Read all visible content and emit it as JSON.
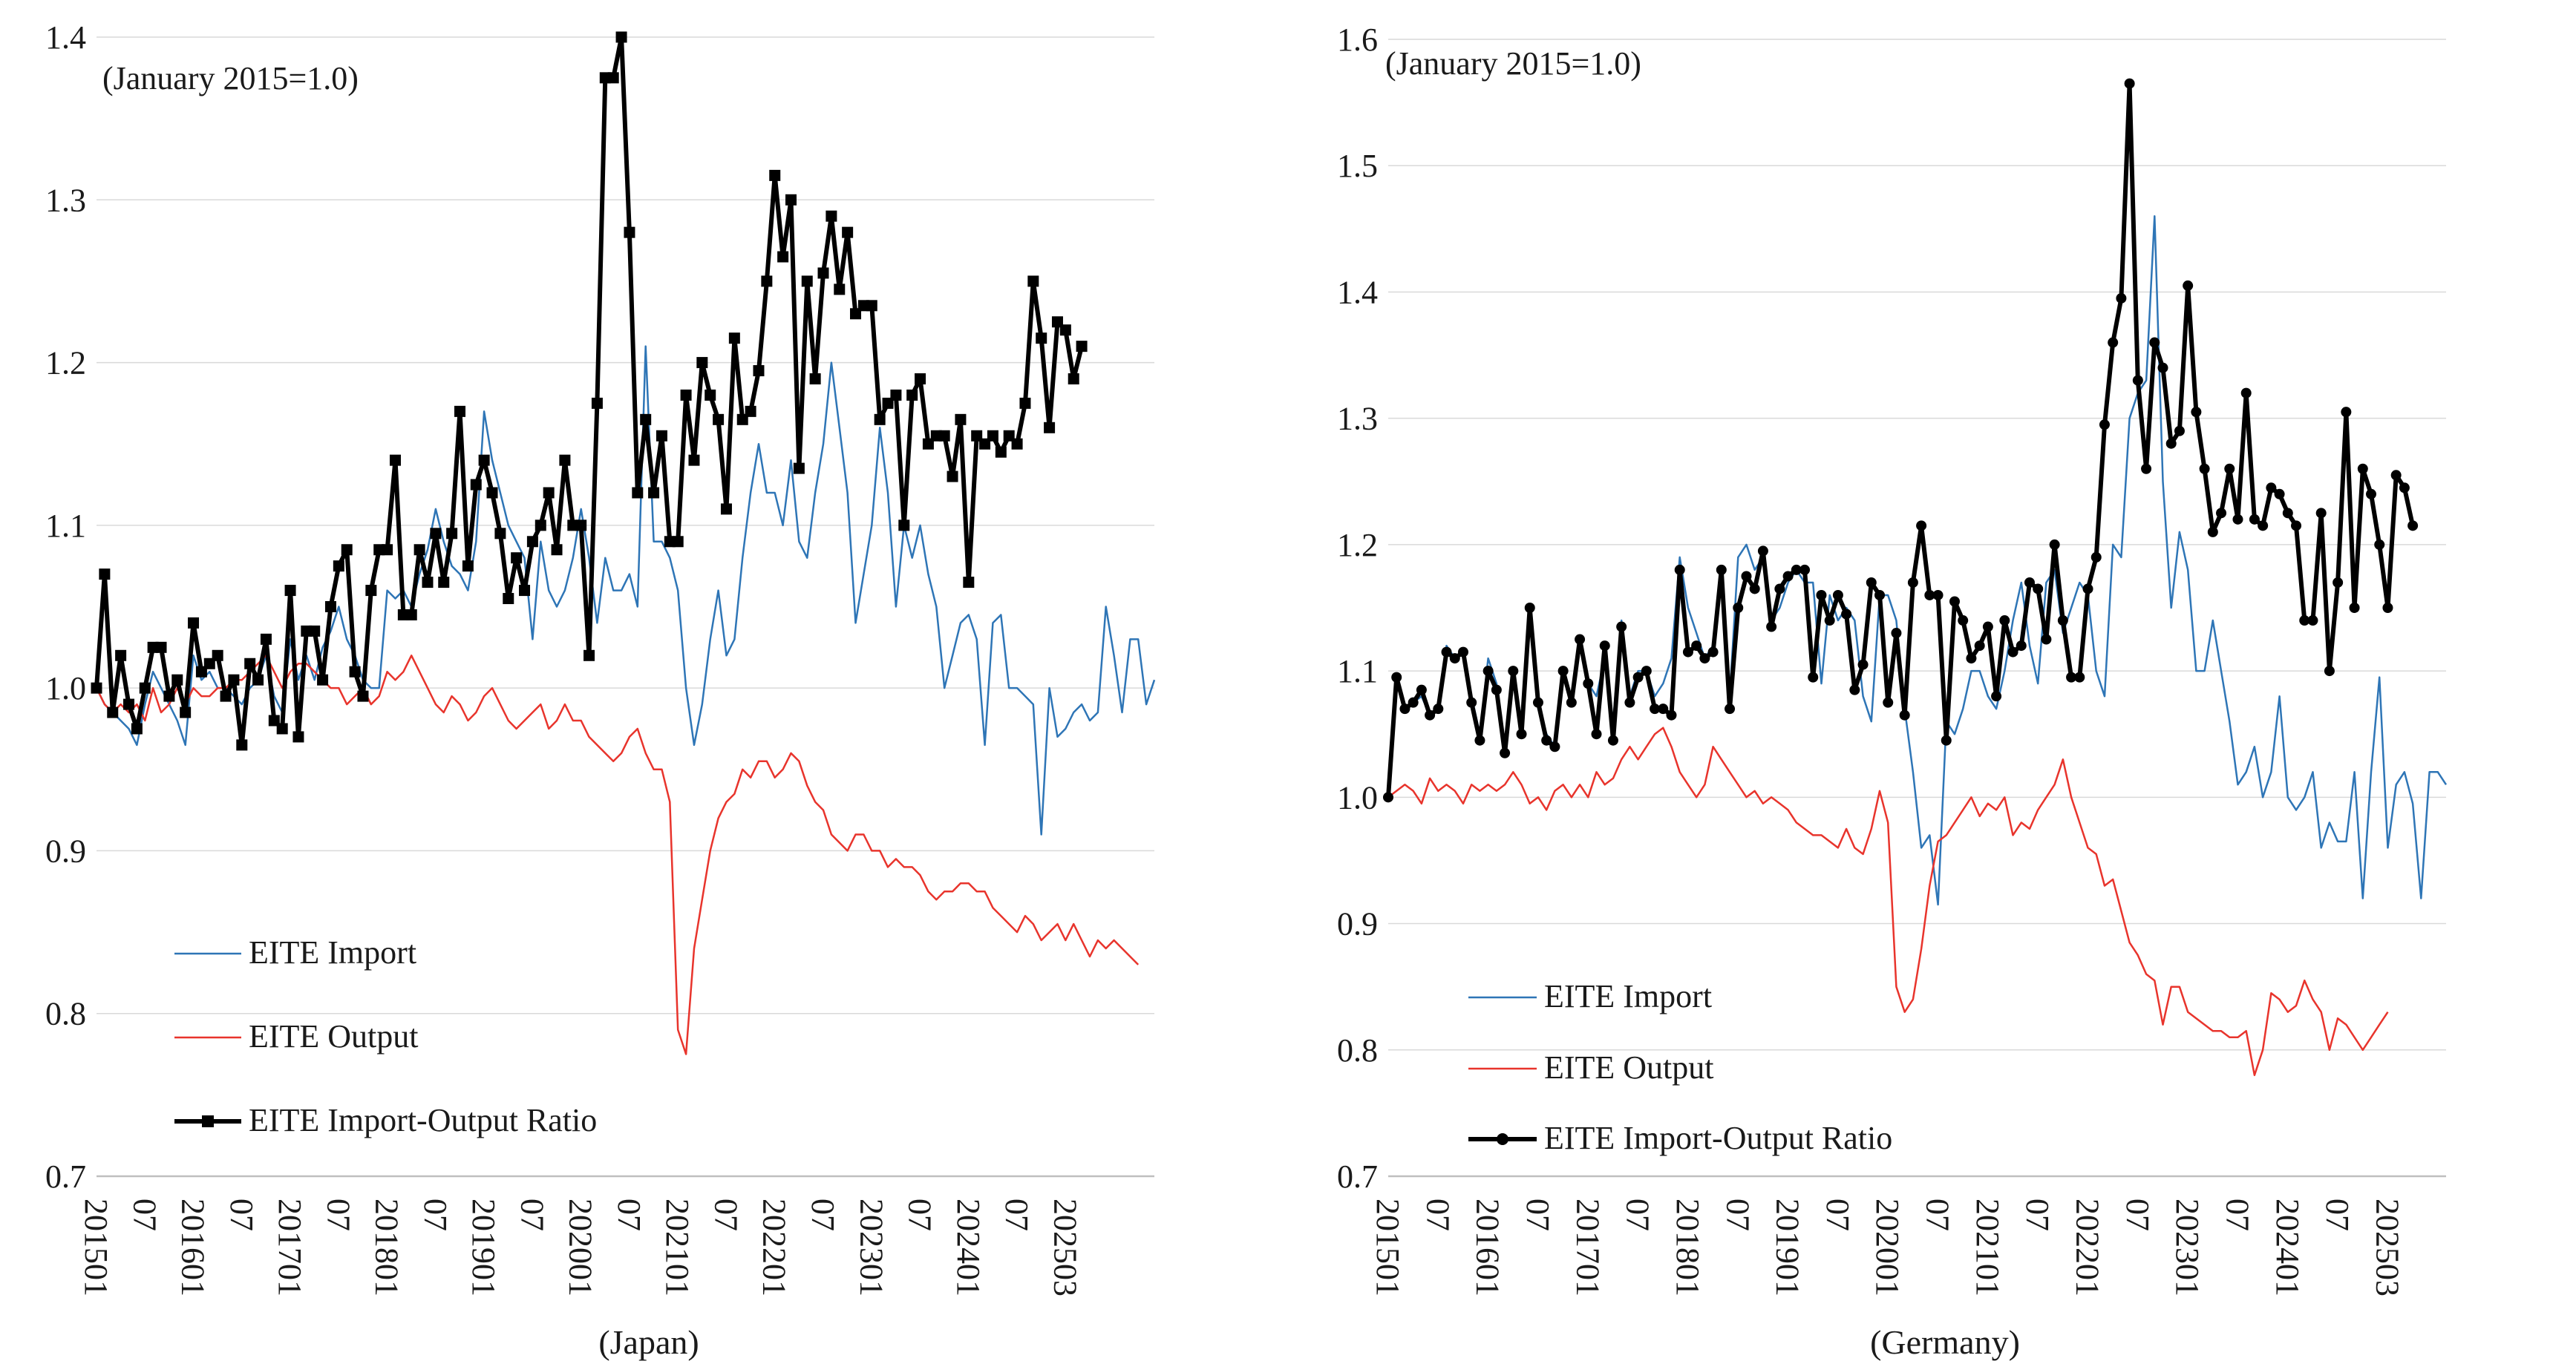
{
  "chart_data": [
    {
      "type": "line",
      "caption": "(Japan)",
      "annotation": "(January 2015=1.0)",
      "ylim": [
        0.7,
        1.4
      ],
      "yticks": [
        "0.7",
        "0.8",
        "0.9",
        "1.0",
        "1.1",
        "1.2",
        "1.3",
        "1.4"
      ],
      "x_start": "201501",
      "x_end": "202503",
      "xtick_labels": [
        "201501",
        "07",
        "201601",
        "07",
        "201701",
        "07",
        "201801",
        "07",
        "201901",
        "07",
        "202001",
        "07",
        "202101",
        "07",
        "202201",
        "07",
        "202301",
        "07",
        "202401",
        "07",
        "202503"
      ],
      "series": [
        {
          "name": "EITE Import",
          "color": "#2e75b6",
          "marker": "none",
          "values": [
            1.0,
            0.99,
            0.985,
            0.98,
            0.975,
            0.965,
            0.99,
            1.01,
            1.0,
            0.99,
            0.98,
            0.965,
            1.02,
            1.005,
            1.01,
            1.0,
            1.0,
            0.995,
            0.99,
            1.0,
            1.005,
            1.02,
            0.995,
            0.985,
            1.03,
            1.005,
            1.02,
            1.005,
            1.025,
            1.035,
            1.05,
            1.03,
            1.02,
            1.005,
            1.0,
            1.0,
            1.06,
            1.055,
            1.06,
            1.05,
            1.07,
            1.085,
            1.11,
            1.09,
            1.075,
            1.07,
            1.06,
            1.09,
            1.17,
            1.14,
            1.12,
            1.1,
            1.09,
            1.08,
            1.03,
            1.09,
            1.06,
            1.05,
            1.06,
            1.08,
            1.11,
            1.08,
            1.04,
            1.08,
            1.06,
            1.06,
            1.07,
            1.05,
            1.21,
            1.09,
            1.09,
            1.08,
            1.06,
            1.0,
            0.965,
            0.99,
            1.03,
            1.06,
            1.02,
            1.03,
            1.08,
            1.12,
            1.15,
            1.12,
            1.12,
            1.1,
            1.14,
            1.09,
            1.08,
            1.12,
            1.15,
            1.2,
            1.16,
            1.12,
            1.04,
            1.07,
            1.1,
            1.16,
            1.12,
            1.05,
            1.1,
            1.08,
            1.1,
            1.07,
            1.05,
            1.0,
            1.02,
            1.04,
            1.045,
            1.03,
            0.965,
            1.04,
            1.045,
            1.0,
            1.0,
            0.995,
            0.99,
            0.91,
            1.0,
            0.97,
            0.975,
            0.985,
            0.99,
            0.98,
            0.985,
            1.05,
            1.02,
            0.985,
            1.03,
            1.03,
            0.99,
            1.005
          ]
        },
        {
          "name": "EITE Output",
          "color": "#e8342c",
          "marker": "none",
          "values": [
            1.0,
            0.99,
            0.985,
            0.99,
            0.985,
            0.99,
            0.98,
            1.0,
            0.985,
            0.99,
            1.0,
            0.99,
            1.0,
            0.995,
            0.995,
            1.0,
            1.0,
            1.005,
            1.005,
            1.01,
            1.015,
            1.02,
            1.01,
            1.0,
            1.01,
            1.015,
            1.015,
            1.01,
            1.005,
            1.0,
            1.0,
            0.99,
            0.995,
            1.0,
            0.99,
            0.995,
            1.01,
            1.005,
            1.01,
            1.02,
            1.01,
            1.0,
            0.99,
            0.985,
            0.995,
            0.99,
            0.98,
            0.985,
            0.995,
            1.0,
            0.99,
            0.98,
            0.975,
            0.98,
            0.985,
            0.99,
            0.975,
            0.98,
            0.99,
            0.98,
            0.98,
            0.97,
            0.965,
            0.96,
            0.955,
            0.96,
            0.97,
            0.975,
            0.96,
            0.95,
            0.95,
            0.93,
            0.79,
            0.775,
            0.84,
            0.87,
            0.9,
            0.92,
            0.93,
            0.935,
            0.95,
            0.945,
            0.955,
            0.955,
            0.945,
            0.95,
            0.96,
            0.955,
            0.94,
            0.93,
            0.925,
            0.91,
            0.905,
            0.9,
            0.91,
            0.91,
            0.9,
            0.9,
            0.89,
            0.895,
            0.89,
            0.89,
            0.885,
            0.875,
            0.87,
            0.875,
            0.875,
            0.88,
            0.88,
            0.875,
            0.875,
            0.865,
            0.86,
            0.855,
            0.85,
            0.86,
            0.855,
            0.845,
            0.85,
            0.855,
            0.845,
            0.855,
            0.845,
            0.835,
            0.845,
            0.84,
            0.845,
            0.84,
            0.835,
            0.83
          ]
        },
        {
          "name": "EITE Import-Output Ratio",
          "color": "#000000",
          "marker": "square",
          "values": [
            1.0,
            1.07,
            0.985,
            1.02,
            0.99,
            0.975,
            1.0,
            1.025,
            1.025,
            0.995,
            1.005,
            0.985,
            1.04,
            1.01,
            1.015,
            1.02,
            0.995,
            1.005,
            0.965,
            1.015,
            1.005,
            1.03,
            0.98,
            0.975,
            1.06,
            0.97,
            1.035,
            1.035,
            1.005,
            1.05,
            1.075,
            1.085,
            1.01,
            0.995,
            1.06,
            1.085,
            1.085,
            1.14,
            1.045,
            1.045,
            1.085,
            1.065,
            1.095,
            1.065,
            1.095,
            1.17,
            1.075,
            1.125,
            1.14,
            1.12,
            1.095,
            1.055,
            1.08,
            1.06,
            1.09,
            1.1,
            1.12,
            1.085,
            1.14,
            1.1,
            1.1,
            1.02,
            1.175,
            1.375,
            1.375,
            1.4,
            1.28,
            1.12,
            1.165,
            1.12,
            1.155,
            1.09,
            1.09,
            1.18,
            1.14,
            1.2,
            1.18,
            1.165,
            1.11,
            1.215,
            1.165,
            1.17,
            1.195,
            1.25,
            1.315,
            1.265,
            1.3,
            1.135,
            1.25,
            1.19,
            1.255,
            1.29,
            1.245,
            1.28,
            1.23,
            1.235,
            1.235,
            1.165,
            1.175,
            1.18,
            1.1,
            1.18,
            1.19,
            1.15,
            1.155,
            1.155,
            1.13,
            1.165,
            1.065,
            1.155,
            1.15,
            1.155,
            1.145,
            1.155,
            1.15,
            1.175,
            1.25,
            1.215,
            1.16,
            1.225,
            1.22,
            1.19,
            1.21
          ]
        }
      ]
    },
    {
      "type": "line",
      "caption": "(Germany)",
      "annotation": "(January 2015=1.0)",
      "ylim": [
        0.7,
        1.6
      ],
      "yticks": [
        "0.7",
        "0.8",
        "0.9",
        "1.0",
        "1.1",
        "1.2",
        "1.3",
        "1.4",
        "1.5",
        "1.6"
      ],
      "x_start": "201501",
      "x_end": "202503",
      "xtick_labels": [
        "201501",
        "07",
        "201601",
        "07",
        "201701",
        "07",
        "201801",
        "07",
        "201901",
        "07",
        "202001",
        "07",
        "202101",
        "07",
        "202201",
        "07",
        "202301",
        "07",
        "202401",
        "07",
        "202503"
      ],
      "series": [
        {
          "name": "EITE Import",
          "color": "#2e75b6",
          "marker": "none",
          "values": [
            1.0,
            1.09,
            1.07,
            1.075,
            1.08,
            1.065,
            1.07,
            1.12,
            1.11,
            1.115,
            1.08,
            1.05,
            1.11,
            1.09,
            1.04,
            1.1,
            1.06,
            1.15,
            1.07,
            1.05,
            1.04,
            1.1,
            1.08,
            1.12,
            1.09,
            1.08,
            1.11,
            1.06,
            1.14,
            1.08,
            1.1,
            1.1,
            1.08,
            1.09,
            1.11,
            1.19,
            1.15,
            1.13,
            1.11,
            1.12,
            1.17,
            1.08,
            1.19,
            1.2,
            1.18,
            1.19,
            1.14,
            1.15,
            1.17,
            1.18,
            1.17,
            1.17,
            1.09,
            1.16,
            1.14,
            1.15,
            1.14,
            1.08,
            1.06,
            1.16,
            1.16,
            1.14,
            1.07,
            1.02,
            0.96,
            0.97,
            0.915,
            1.06,
            1.05,
            1.07,
            1.1,
            1.1,
            1.08,
            1.07,
            1.1,
            1.14,
            1.17,
            1.12,
            1.09,
            1.17,
            1.18,
            1.13,
            1.15,
            1.17,
            1.16,
            1.1,
            1.08,
            1.2,
            1.19,
            1.3,
            1.32,
            1.33,
            1.46,
            1.25,
            1.15,
            1.21,
            1.18,
            1.1,
            1.1,
            1.14,
            1.1,
            1.06,
            1.01,
            1.02,
            1.04,
            1.0,
            1.02,
            1.08,
            1.0,
            0.99,
            1.0,
            1.02,
            0.96,
            0.98,
            0.965,
            0.965,
            1.02,
            0.92,
            1.02,
            1.095,
            0.96,
            1.01,
            1.02,
            0.995,
            0.92,
            1.02,
            1.02,
            1.01
          ]
        },
        {
          "name": "EITE Output",
          "color": "#e8342c",
          "marker": "none",
          "values": [
            1.0,
            1.005,
            1.01,
            1.005,
            0.995,
            1.015,
            1.005,
            1.01,
            1.005,
            0.995,
            1.01,
            1.005,
            1.01,
            1.005,
            1.01,
            1.02,
            1.01,
            0.995,
            1.0,
            0.99,
            1.005,
            1.01,
            1.0,
            1.01,
            1.0,
            1.02,
            1.01,
            1.015,
            1.03,
            1.04,
            1.03,
            1.04,
            1.05,
            1.055,
            1.04,
            1.02,
            1.01,
            1.0,
            1.01,
            1.04,
            1.03,
            1.02,
            1.01,
            1.0,
            1.005,
            0.995,
            1.0,
            0.995,
            0.99,
            0.98,
            0.975,
            0.97,
            0.97,
            0.965,
            0.96,
            0.975,
            0.96,
            0.955,
            0.975,
            1.005,
            0.98,
            0.85,
            0.83,
            0.84,
            0.88,
            0.93,
            0.965,
            0.97,
            0.98,
            0.99,
            1.0,
            0.985,
            0.995,
            0.99,
            1.0,
            0.97,
            0.98,
            0.975,
            0.99,
            1.0,
            1.01,
            1.03,
            1.0,
            0.98,
            0.96,
            0.955,
            0.93,
            0.935,
            0.91,
            0.885,
            0.875,
            0.86,
            0.855,
            0.82,
            0.85,
            0.85,
            0.83,
            0.825,
            0.82,
            0.815,
            0.815,
            0.81,
            0.81,
            0.815,
            0.78,
            0.8,
            0.845,
            0.84,
            0.83,
            0.835,
            0.855,
            0.84,
            0.83,
            0.8,
            0.825,
            0.82,
            0.81,
            0.8,
            0.81,
            0.82,
            0.83
          ]
        },
        {
          "name": "EITE Import-Output Ratio",
          "color": "#000000",
          "marker": "circle",
          "values": [
            1.0,
            1.095,
            1.07,
            1.075,
            1.085,
            1.065,
            1.07,
            1.115,
            1.11,
            1.115,
            1.075,
            1.045,
            1.1,
            1.085,
            1.035,
            1.1,
            1.05,
            1.15,
            1.075,
            1.045,
            1.04,
            1.1,
            1.075,
            1.125,
            1.09,
            1.05,
            1.12,
            1.045,
            1.135,
            1.075,
            1.095,
            1.1,
            1.07,
            1.07,
            1.065,
            1.18,
            1.115,
            1.12,
            1.11,
            1.115,
            1.18,
            1.07,
            1.15,
            1.175,
            1.165,
            1.195,
            1.135,
            1.165,
            1.175,
            1.18,
            1.18,
            1.095,
            1.16,
            1.14,
            1.16,
            1.145,
            1.085,
            1.105,
            1.17,
            1.16,
            1.075,
            1.13,
            1.065,
            1.17,
            1.215,
            1.16,
            1.16,
            1.045,
            1.155,
            1.14,
            1.11,
            1.12,
            1.135,
            1.08,
            1.14,
            1.115,
            1.12,
            1.17,
            1.165,
            1.125,
            1.2,
            1.14,
            1.095,
            1.095,
            1.165,
            1.19,
            1.295,
            1.36,
            1.395,
            1.565,
            1.33,
            1.26,
            1.36,
            1.34,
            1.28,
            1.29,
            1.405,
            1.305,
            1.26,
            1.21,
            1.225,
            1.26,
            1.22,
            1.32,
            1.22,
            1.215,
            1.245,
            1.24,
            1.225,
            1.215,
            1.14,
            1.14,
            1.225,
            1.1,
            1.17,
            1.305,
            1.15,
            1.26,
            1.24,
            1.2,
            1.15,
            1.255,
            1.245,
            1.215
          ]
        }
      ]
    }
  ]
}
